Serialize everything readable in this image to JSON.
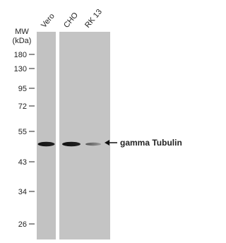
{
  "lanes": [
    "Vero",
    "CHO",
    "RK 13"
  ],
  "mw_label": {
    "line1": "MW",
    "line2": "(kDa)"
  },
  "markers": [
    "180",
    "130",
    "95",
    "72",
    "55",
    "43",
    "34",
    "26"
  ],
  "band_label": "gamma Tubulin"
}
